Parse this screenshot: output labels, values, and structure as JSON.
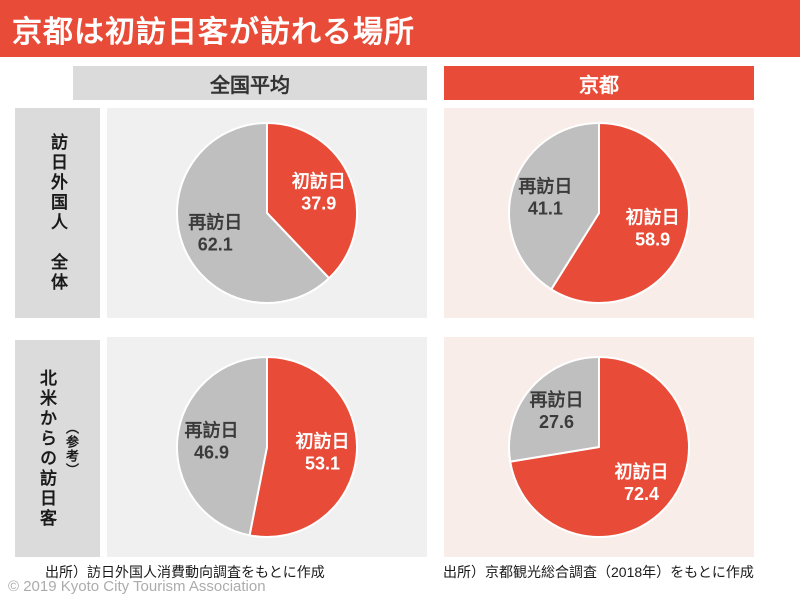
{
  "title": "京都は初訪日客が訪れる場所",
  "columns": {
    "left": "全国平均",
    "right": "京都"
  },
  "rows": [
    {
      "label": "訪日外国人　全体",
      "note": ""
    },
    {
      "label": "北米からの訪日客",
      "note": "（参考）"
    }
  ],
  "sources": {
    "left": "出所）訪日外国人消費動向調査をもとに作成",
    "right": "出所）京都観光総合調査（2018年）をもとに作成"
  },
  "copyright": "© 2019 Kyoto City Tourism Association",
  "colors": {
    "accent_red": "#E84C38",
    "pie_gray": "#BFBFBF",
    "header_gray": "#DBDBDB",
    "cell_gray": "#F1F0F0",
    "cell_pink": "#F9EDEA",
    "slice_text_light": "#FFFFFF",
    "slice_text_dark": "#3B3B3B"
  },
  "chart_data": [
    {
      "type": "pie",
      "row": "訪日外国人 全体",
      "column": "全国平均",
      "unit": "%",
      "start_angle_deg": 0,
      "direction": "clockwise",
      "slices": [
        {
          "label": "初訪日",
          "value": 37.9,
          "color_key": "accent_red",
          "text_color_key": "slice_text_light"
        },
        {
          "label": "再訪日",
          "value": 62.1,
          "color_key": "pie_gray",
          "text_color_key": "slice_text_dark"
        }
      ]
    },
    {
      "type": "pie",
      "row": "訪日外国人 全体",
      "column": "京都",
      "unit": "%",
      "start_angle_deg": 0,
      "direction": "clockwise",
      "slices": [
        {
          "label": "初訪日",
          "value": 58.9,
          "color_key": "accent_red",
          "text_color_key": "slice_text_light"
        },
        {
          "label": "再訪日",
          "value": 41.1,
          "color_key": "pie_gray",
          "text_color_key": "slice_text_dark"
        }
      ]
    },
    {
      "type": "pie",
      "row": "北米からの訪日客（参考）",
      "column": "全国平均",
      "unit": "%",
      "start_angle_deg": 0,
      "direction": "clockwise",
      "slices": [
        {
          "label": "初訪日",
          "value": 53.1,
          "color_key": "accent_red",
          "text_color_key": "slice_text_light"
        },
        {
          "label": "再訪日",
          "value": 46.9,
          "color_key": "pie_gray",
          "text_color_key": "slice_text_dark"
        }
      ]
    },
    {
      "type": "pie",
      "row": "北米からの訪日客（参考）",
      "column": "京都",
      "unit": "%",
      "start_angle_deg": 0,
      "direction": "clockwise",
      "slices": [
        {
          "label": "初訪日",
          "value": 72.4,
          "color_key": "accent_red",
          "text_color_key": "slice_text_light"
        },
        {
          "label": "再訪日",
          "value": 27.6,
          "color_key": "pie_gray",
          "text_color_key": "slice_text_dark"
        }
      ]
    }
  ]
}
